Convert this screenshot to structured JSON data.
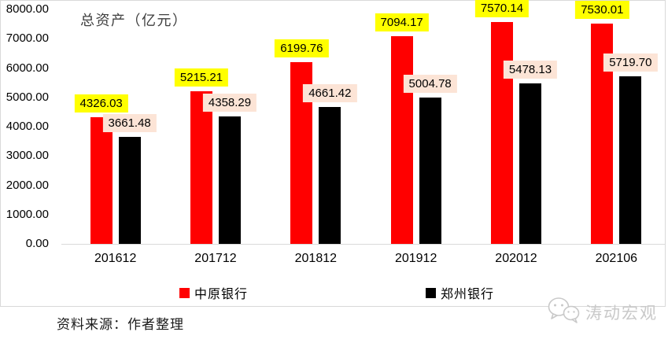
{
  "chart_data": {
    "type": "bar",
    "title": "总资产（亿元）",
    "categories": [
      "201612",
      "201712",
      "201812",
      "201912",
      "202012",
      "202106"
    ],
    "series": [
      {
        "name": "中原银行",
        "slug": "zhongyuan-bank",
        "color": "#ff0000",
        "label_bg": "#ffff00",
        "values": [
          4326.03,
          5215.21,
          6199.76,
          7094.17,
          7570.14,
          7530.01
        ]
      },
      {
        "name": "郑州银行",
        "slug": "zhengzhou-bank",
        "color": "#000000",
        "label_bg": "#fce4d6",
        "values": [
          3661.48,
          4358.29,
          4661.42,
          5004.78,
          5478.13,
          5719.7
        ]
      }
    ],
    "ylim": [
      0,
      8000
    ],
    "yticks": [
      "0.00",
      "1000.00",
      "2000.00",
      "3000.00",
      "4000.00",
      "5000.00",
      "6000.00",
      "7000.00",
      "8000.00"
    ],
    "grid": false,
    "legend_position": "bottom",
    "value_labels": true
  },
  "footer": {
    "source": "资料来源：作者整理"
  },
  "watermark": {
    "text": "涛动宏观",
    "icon": "wechat-chat-bubbles-icon"
  }
}
